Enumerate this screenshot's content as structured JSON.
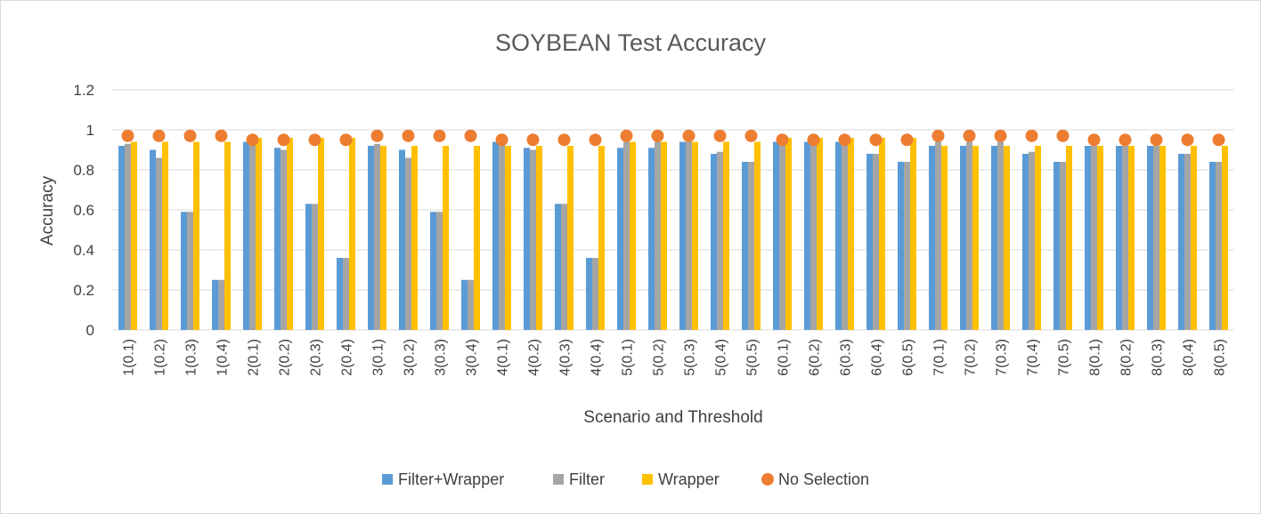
{
  "chart_data": {
    "type": "bar",
    "title": "SOYBEAN Test Accuracy",
    "xlabel": "Scenario and Threshold",
    "ylabel": "Accuracy",
    "ylim": [
      0,
      1.2
    ],
    "yticks": [
      "0",
      "0.2",
      "0.4",
      "0.6",
      "0.8",
      "1",
      "1.2"
    ],
    "grid": true,
    "legend_position": "bottom",
    "categories": [
      "1(0.1)",
      "1(0.2)",
      "1(0.3)",
      "1(0.4)",
      "2(0.1)",
      "2(0.2)",
      "2(0.3)",
      "2(0.4)",
      "3(0.1)",
      "3(0.2)",
      "3(0.3)",
      "3(0.4)",
      "4(0.1)",
      "4(0.2)",
      "4(0.3)",
      "4(0.4)",
      "5(0.1)",
      "5(0.2)",
      "5(0.3)",
      "5(0.4)",
      "5(0.5)",
      "6(0.1)",
      "6(0.2)",
      "6(0.3)",
      "6(0.4)",
      "6(0.5)",
      "7(0.1)",
      "7(0.2)",
      "7(0.3)",
      "7(0.4)",
      "7(0.5)",
      "8(0.1)",
      "8(0.2)",
      "8(0.3)",
      "8(0.4)",
      "8(0.5)"
    ],
    "series": [
      {
        "name": "Filter+Wrapper",
        "kind": "bar",
        "color": "#5b9bd5",
        "values": [
          0.92,
          0.9,
          0.59,
          0.25,
          0.94,
          0.91,
          0.63,
          0.36,
          0.92,
          0.9,
          0.59,
          0.25,
          0.94,
          0.91,
          0.63,
          0.36,
          0.91,
          0.91,
          0.94,
          0.88,
          0.84,
          0.94,
          0.94,
          0.94,
          0.88,
          0.84,
          0.92,
          0.92,
          0.92,
          0.88,
          0.84,
          0.92,
          0.92,
          0.92,
          0.88,
          0.84
        ]
      },
      {
        "name": "Filter",
        "kind": "bar",
        "color": "#a5a5a5",
        "values": [
          0.93,
          0.86,
          0.59,
          0.25,
          0.94,
          0.9,
          0.63,
          0.36,
          0.93,
          0.86,
          0.59,
          0.25,
          0.94,
          0.9,
          0.63,
          0.36,
          0.94,
          0.94,
          0.94,
          0.89,
          0.84,
          0.94,
          0.94,
          0.94,
          0.88,
          0.84,
          0.94,
          0.94,
          0.94,
          0.89,
          0.84,
          0.92,
          0.92,
          0.92,
          0.88,
          0.84
        ]
      },
      {
        "name": "Wrapper",
        "kind": "bar",
        "color": "#ffc000",
        "values": [
          0.94,
          0.94,
          0.94,
          0.94,
          0.96,
          0.96,
          0.96,
          0.96,
          0.92,
          0.92,
          0.92,
          0.92,
          0.92,
          0.92,
          0.92,
          0.92,
          0.94,
          0.94,
          0.94,
          0.94,
          0.94,
          0.96,
          0.96,
          0.96,
          0.96,
          0.96,
          0.92,
          0.92,
          0.92,
          0.92,
          0.92,
          0.92,
          0.92,
          0.92,
          0.92,
          0.92
        ]
      },
      {
        "name": "No Selection",
        "kind": "marker",
        "color": "#ed7d31",
        "values": [
          0.97,
          0.97,
          0.97,
          0.97,
          0.95,
          0.95,
          0.95,
          0.95,
          0.97,
          0.97,
          0.97,
          0.97,
          0.95,
          0.95,
          0.95,
          0.95,
          0.97,
          0.97,
          0.97,
          0.97,
          0.97,
          0.95,
          0.95,
          0.95,
          0.95,
          0.95,
          0.97,
          0.97,
          0.97,
          0.97,
          0.97,
          0.95,
          0.95,
          0.95,
          0.95,
          0.95
        ]
      }
    ]
  }
}
